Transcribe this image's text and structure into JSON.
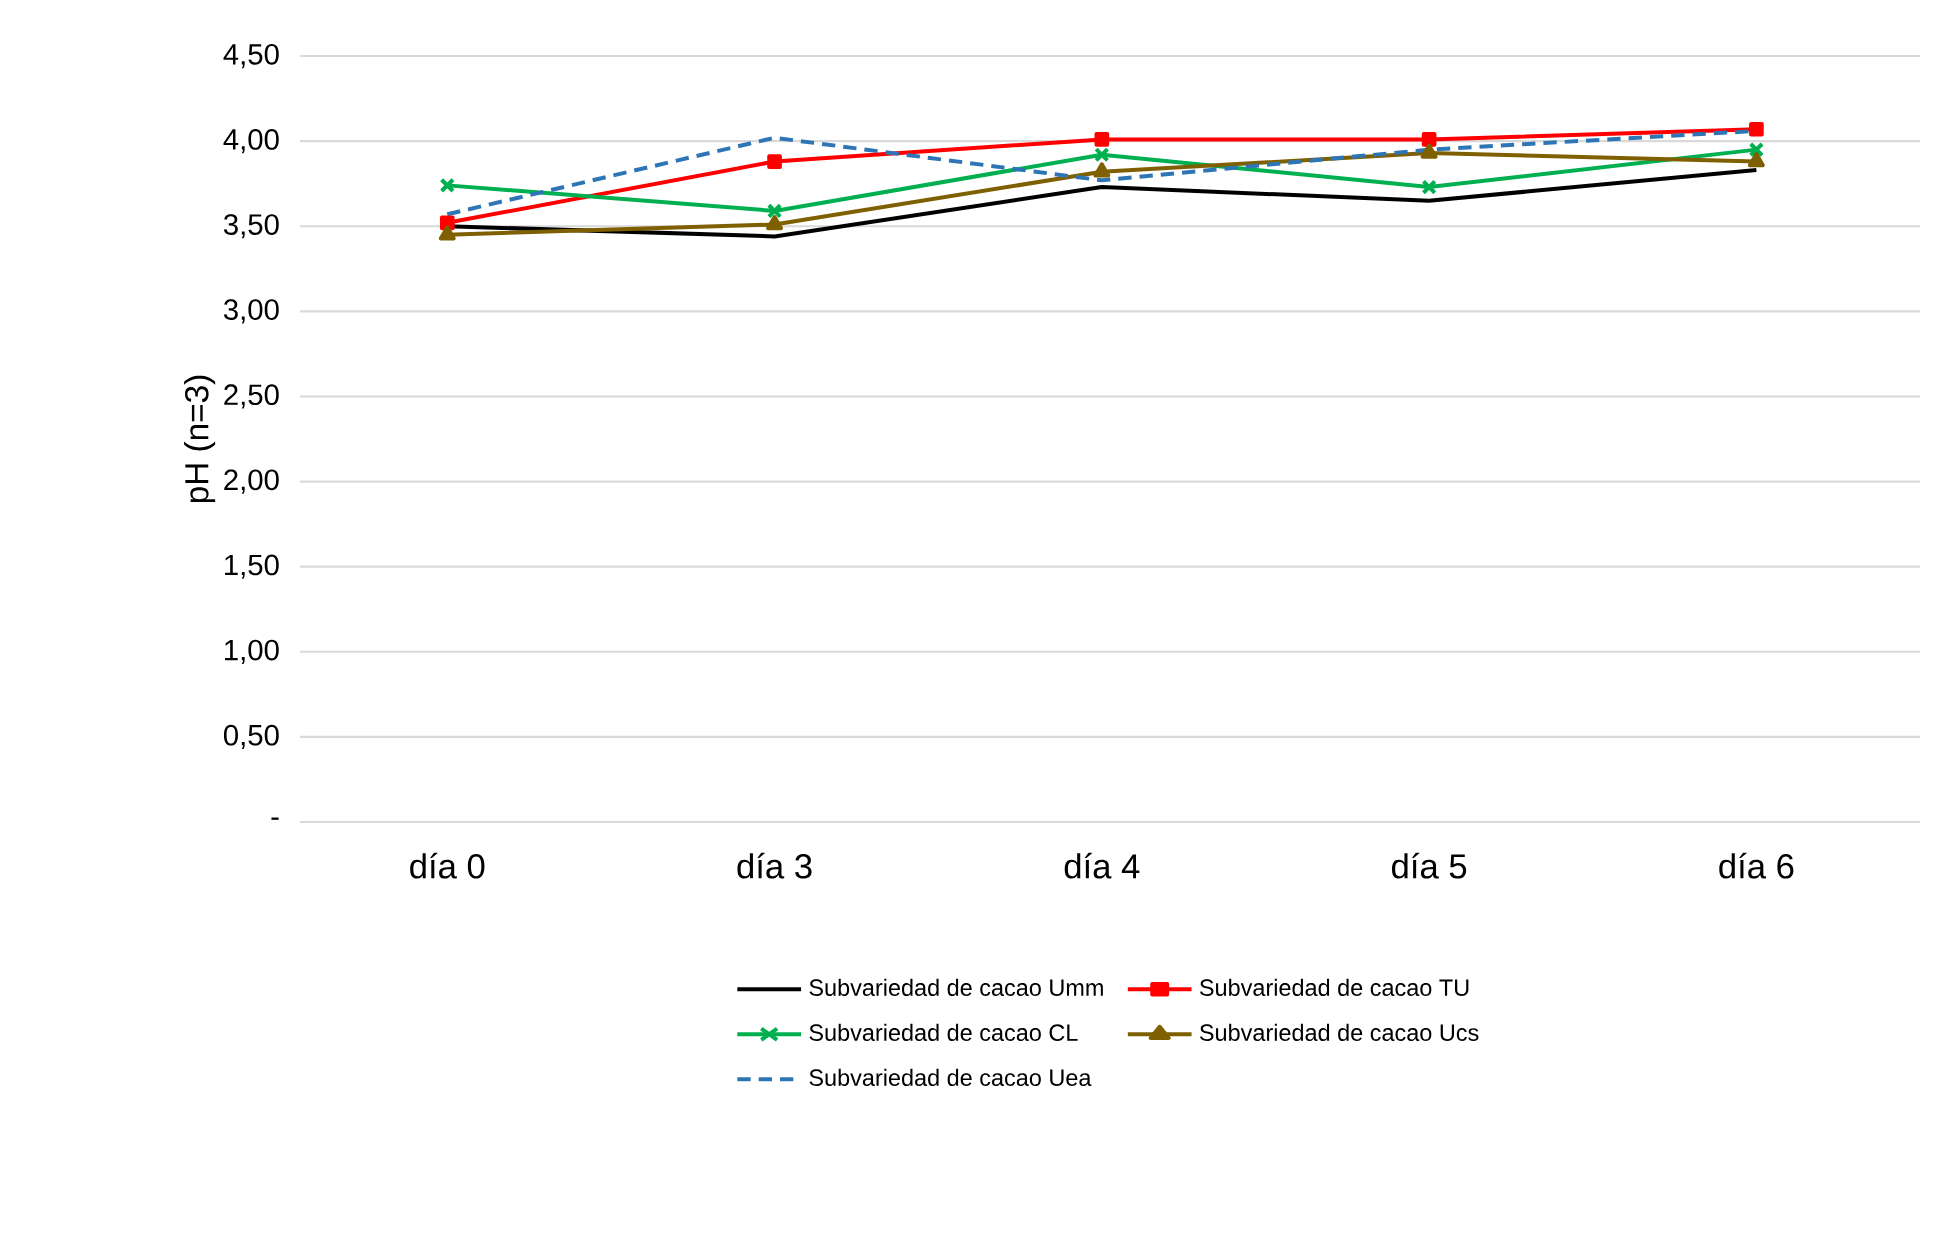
{
  "chart_data": {
    "type": "line",
    "ylabel": "pH (n=3)",
    "categories": [
      "día 0",
      "día 3",
      "día 4",
      "día 5",
      "día 6"
    ],
    "series": [
      {
        "name": "Subvariedad de cacao Umm",
        "color": "#000000",
        "marker": "none",
        "line_style": "solid",
        "values": [
          3.5,
          3.44,
          3.73,
          3.65,
          3.83
        ]
      },
      {
        "name": "Subvariedad de cacao TU",
        "color": "#ff0000",
        "marker": "square",
        "line_style": "solid",
        "values": [
          3.52,
          3.88,
          4.01,
          4.01,
          4.07
        ]
      },
      {
        "name": "Subvariedad de cacao CL",
        "color": "#00b050",
        "marker": "cross",
        "line_style": "solid",
        "values": [
          3.74,
          3.59,
          3.92,
          3.73,
          3.95
        ]
      },
      {
        "name": "Subvariedad de cacao Ucs",
        "color": "#7f6000",
        "marker": "triangle",
        "line_style": "solid",
        "values": [
          3.45,
          3.51,
          3.82,
          3.93,
          3.88
        ]
      },
      {
        "name": "Subvariedad de cacao Uea",
        "color": "#2e75b6",
        "marker": "none",
        "line_style": "dashed",
        "values": [
          3.57,
          4.02,
          3.77,
          3.95,
          4.06
        ]
      }
    ],
    "ylim": [
      0,
      4.5
    ],
    "yticks": [
      {
        "value": 0,
        "label": "-"
      },
      {
        "value": 0.5,
        "label": "0,50"
      },
      {
        "value": 1,
        "label": "1,00"
      },
      {
        "value": 1.5,
        "label": "1,50"
      },
      {
        "value": 2,
        "label": "2,00"
      },
      {
        "value": 2.5,
        "label": "2,50"
      },
      {
        "value": 3,
        "label": "3,00"
      },
      {
        "value": 3.5,
        "label": "3,50"
      },
      {
        "value": 4,
        "label": "4,00"
      },
      {
        "value": 4.5,
        "label": "4,50"
      }
    ],
    "grid": "y",
    "legend": "bottom"
  }
}
